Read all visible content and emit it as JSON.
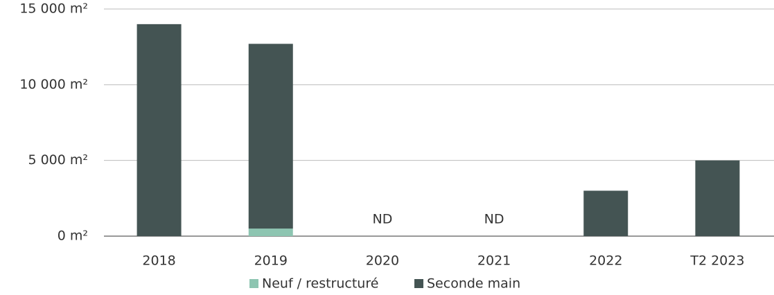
{
  "chart_data": {
    "type": "bar",
    "stacked": true,
    "categories": [
      "2018",
      "2019",
      "2020",
      "2021",
      "2022",
      "T2 2023"
    ],
    "series": [
      {
        "name": "Neuf / restructuré",
        "color": "#8dc5b1",
        "values": [
          0,
          500,
          null,
          null,
          0,
          0
        ]
      },
      {
        "name": "Seconde main",
        "color": "#445453",
        "values": [
          14000,
          12200,
          null,
          null,
          3000,
          5000
        ]
      }
    ],
    "annotations": [
      null,
      null,
      "ND",
      "ND",
      null,
      null
    ],
    "ylim": [
      0,
      15000
    ],
    "yticks": [
      {
        "value": 0,
        "label": "0 m²"
      },
      {
        "value": 5000,
        "label": "5 000 m²"
      },
      {
        "value": 10000,
        "label": "10 000 m²"
      },
      {
        "value": 15000,
        "label": "15 000 m²"
      }
    ],
    "grid": true,
    "legend": "bottom"
  }
}
